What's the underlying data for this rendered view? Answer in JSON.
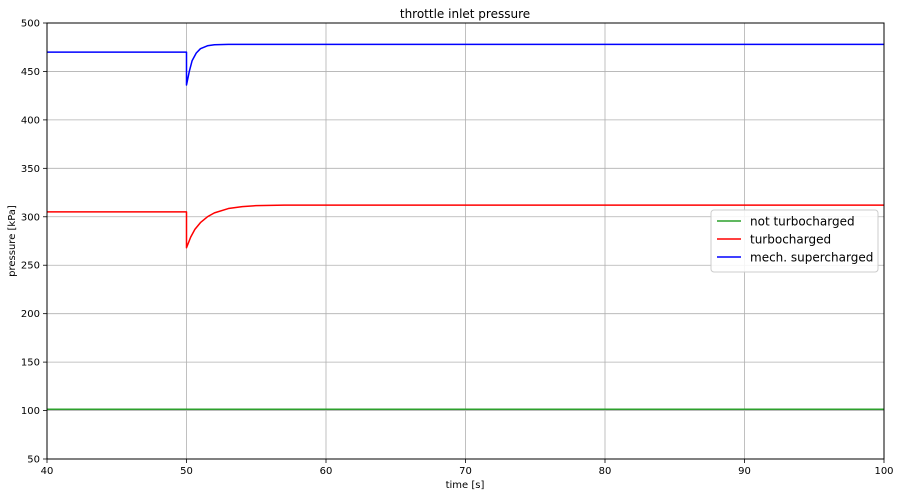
{
  "chart_data": {
    "type": "line",
    "title": "throttle inlet pressure",
    "xlabel": "time [s]",
    "ylabel": "pressure [kPa]",
    "xlim": [
      40,
      100
    ],
    "ylim": [
      50,
      500
    ],
    "xticks": [
      "40",
      "50",
      "60",
      "70",
      "80",
      "90",
      "100"
    ],
    "yticks": [
      "50",
      "100",
      "150",
      "200",
      "250",
      "300",
      "350",
      "400",
      "450",
      "500"
    ],
    "grid": true,
    "legend_position": "center-right",
    "series": [
      {
        "name": "not turbocharged",
        "color": "#2ca02c",
        "points": [
          [
            40,
            101.3
          ],
          [
            100,
            101.3
          ]
        ]
      },
      {
        "name": "turbocharged",
        "color": "#ff0000",
        "points": [
          [
            40,
            305
          ],
          [
            50,
            305
          ],
          [
            50,
            268
          ],
          [
            50.3,
            279
          ],
          [
            50.6,
            287
          ],
          [
            51,
            294
          ],
          [
            51.5,
            300
          ],
          [
            52,
            304
          ],
          [
            53,
            308.5
          ],
          [
            54,
            310.5
          ],
          [
            55,
            311.5
          ],
          [
            57,
            312
          ],
          [
            60,
            312
          ],
          [
            100,
            312
          ]
        ]
      },
      {
        "name": "mech. supercharged",
        "color": "#0000ff",
        "points": [
          [
            40,
            470
          ],
          [
            50,
            470
          ],
          [
            50,
            436
          ],
          [
            50.2,
            450
          ],
          [
            50.4,
            461
          ],
          [
            50.7,
            469
          ],
          [
            51,
            473.5
          ],
          [
            51.5,
            476.5
          ],
          [
            52,
            477.5
          ],
          [
            53,
            478
          ],
          [
            100,
            478
          ]
        ]
      }
    ]
  }
}
